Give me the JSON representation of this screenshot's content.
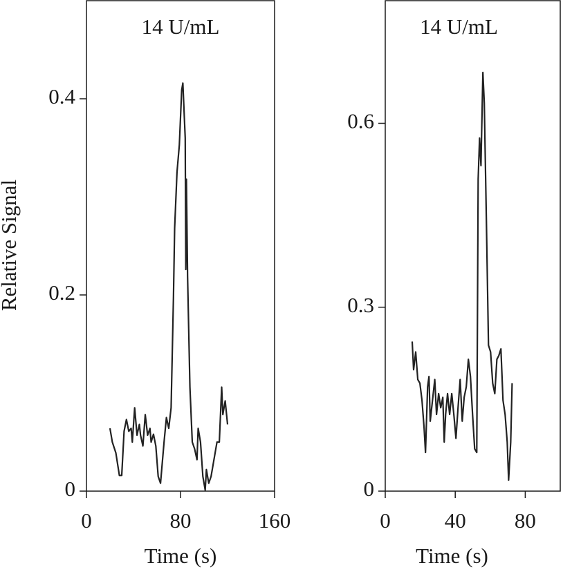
{
  "chart_data": [
    {
      "type": "line",
      "title": "14 U/mL",
      "x_label": "Time (s)",
      "y_label": "Relative Signal",
      "xlim": [
        0,
        160
      ],
      "ylim": [
        0,
        0.5
      ],
      "xticks": [
        0,
        80,
        160
      ],
      "yticks": [
        0,
        0.2,
        0.4
      ],
      "series": [
        {
          "color": "#222222",
          "x": [
            20,
            22,
            25,
            28,
            30,
            32,
            34,
            36,
            38,
            39,
            41,
            43,
            45,
            46,
            48,
            50,
            52,
            54,
            55,
            57,
            59,
            61,
            63,
            65,
            66,
            68,
            70,
            72,
            74,
            75,
            77,
            79,
            81,
            82,
            84,
            84.5,
            85,
            86,
            88,
            90,
            92,
            94,
            95,
            97,
            99,
            101,
            102,
            104,
            106,
            108,
            109,
            111,
            113,
            115,
            116,
            118,
            120
          ],
          "values": [
            0.064,
            0.05,
            0.039,
            0.016,
            0.016,
            0.061,
            0.073,
            0.061,
            0.064,
            0.05,
            0.085,
            0.057,
            0.068,
            0.057,
            0.046,
            0.078,
            0.057,
            0.064,
            0.05,
            0.058,
            0.046,
            0.015,
            0.008,
            0.036,
            0.05,
            0.075,
            0.064,
            0.085,
            0.198,
            0.268,
            0.325,
            0.353,
            0.409,
            0.416,
            0.36,
            0.226,
            0.318,
            0.219,
            0.106,
            0.05,
            0.043,
            0.032,
            0.064,
            0.05,
            0.015,
            0.001,
            0.022,
            0.008,
            0.015,
            0.029,
            0.036,
            0.05,
            0.05,
            0.106,
            0.078,
            0.092,
            0.068
          ]
        }
      ]
    },
    {
      "type": "line",
      "title": "14 U/mL",
      "x_label": "Time (s)",
      "xlim": [
        0,
        100
      ],
      "ylim": [
        0,
        0.8
      ],
      "xticks": [
        0,
        40,
        80
      ],
      "yticks": [
        0,
        0.3,
        0.6
      ],
      "series": [
        {
          "color": "#222222",
          "x": [
            15.4,
            16.2,
            17.4,
            18.6,
            19.8,
            21,
            22.2,
            23,
            24.2,
            25,
            25.7,
            27,
            28.3,
            29.3,
            30.5,
            31.7,
            32.9,
            33.7,
            34.5,
            35.6,
            36.8,
            38,
            39.2,
            40.4,
            41.6,
            42.8,
            44,
            45.1,
            46.3,
            47.5,
            48.7,
            49.9,
            51.1,
            52.3,
            53.1,
            53.9,
            54.7,
            55.8,
            56.6,
            57.8,
            59,
            60.2,
            61.4,
            62.6,
            63.8,
            64.9,
            66.1,
            67.3,
            68.5,
            69.7,
            70.5,
            71.7,
            72.5
          ],
          "values": [
            0.244,
            0.198,
            0.227,
            0.182,
            0.176,
            0.148,
            0.103,
            0.063,
            0.17,
            0.187,
            0.114,
            0.148,
            0.182,
            0.125,
            0.159,
            0.136,
            0.153,
            0.08,
            0.125,
            0.159,
            0.125,
            0.159,
            0.125,
            0.086,
            0.136,
            0.182,
            0.114,
            0.153,
            0.17,
            0.215,
            0.187,
            0.125,
            0.069,
            0.063,
            0.509,
            0.576,
            0.531,
            0.683,
            0.633,
            0.441,
            0.238,
            0.227,
            0.176,
            0.159,
            0.215,
            0.221,
            0.232,
            0.148,
            0.125,
            0.08,
            0.018,
            0.08,
            0.176
          ]
        }
      ]
    }
  ]
}
